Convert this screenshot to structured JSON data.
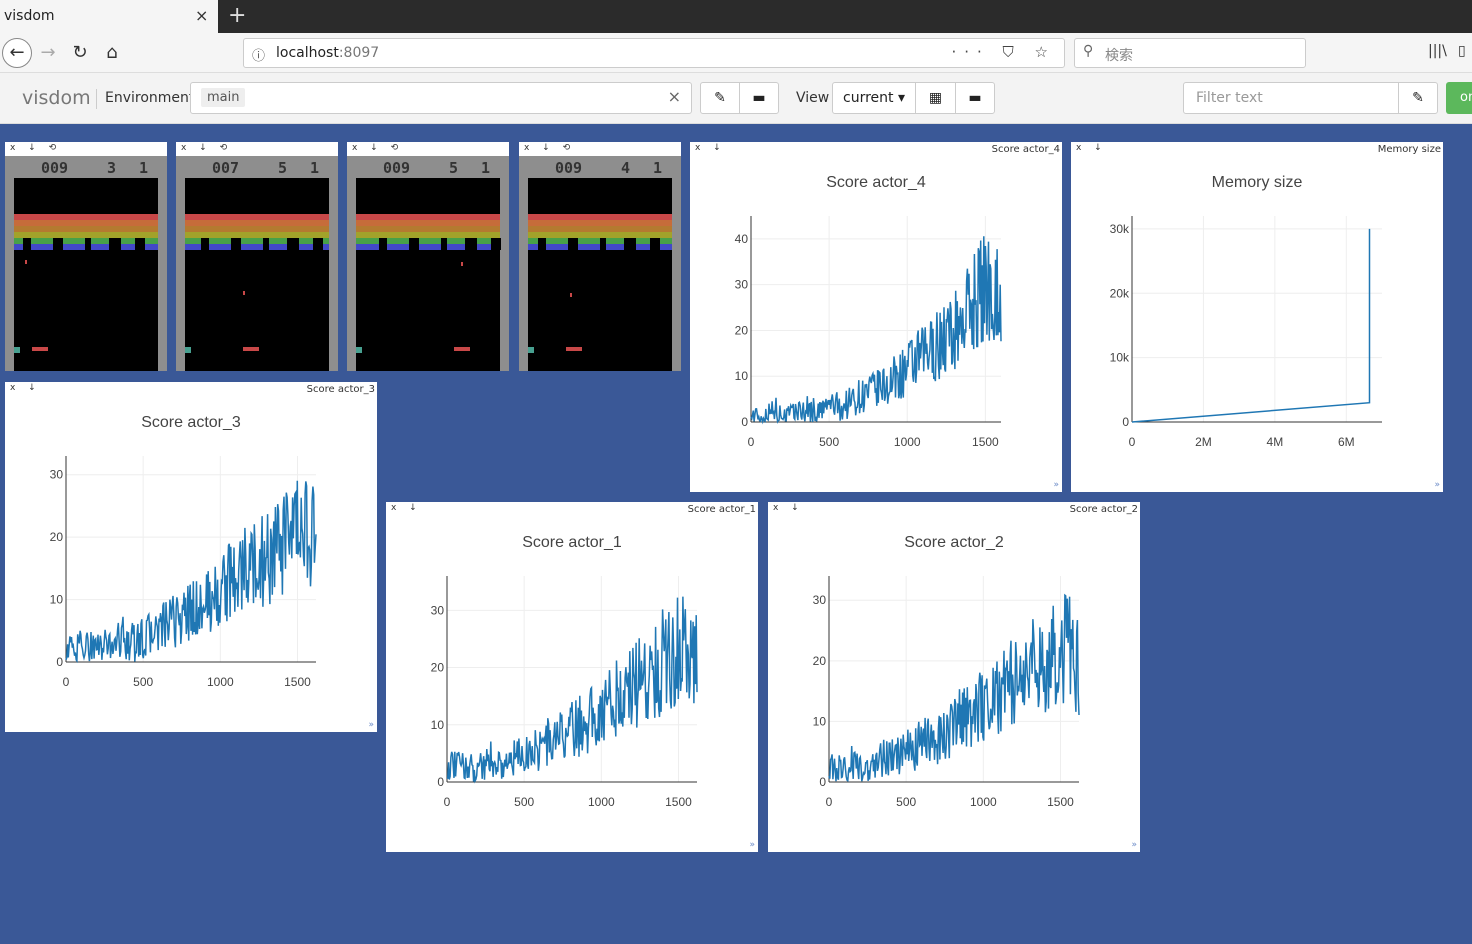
{
  "browser": {
    "tab_title": "visdom",
    "tab_close": "×",
    "new_tab": "+",
    "url_host": "localhost",
    "url_port": ":8097",
    "url_actions": "··· ⛉ ☆",
    "search_placeholder": "検索"
  },
  "toolbar": {
    "brand": "visdom",
    "environment_label": "Environment",
    "env_tag": "main",
    "env_clear": "×",
    "view_label": "View",
    "view_select": "current ▾",
    "filter_placeholder": "Filter text",
    "online_label": "online"
  },
  "panes": {
    "controls": "x ↓ ⟲",
    "controls_short": "x ↓",
    "images": [
      {
        "score": "009",
        "a": "3",
        "b": "1"
      },
      {
        "score": "007",
        "a": "5",
        "b": "1"
      },
      {
        "score": "009",
        "a": "5",
        "b": "1"
      },
      {
        "score": "009",
        "a": "4",
        "b": "1"
      }
    ],
    "score4_tab": "Score actor_4",
    "memory_tab": "Memory size",
    "score3_tab": "Score actor_3",
    "score1_tab": "Score actor_1",
    "score2_tab": "Score actor_2",
    "resize": "»"
  },
  "chart_data": [
    {
      "id": "score4",
      "type": "line",
      "title": "Score actor_4",
      "xlim": [
        0,
        1600
      ],
      "ylim": [
        0,
        45
      ],
      "xticks": [
        0,
        500,
        1000,
        1500
      ],
      "yticks": [
        0,
        10,
        20,
        30,
        40
      ],
      "ytick_labels": [
        "0",
        "10",
        "20",
        "30",
        "40"
      ],
      "series": [
        {
          "color": "#1f77b4",
          "values": [
            2,
            0,
            3,
            1,
            2,
            3,
            2,
            4,
            3,
            5,
            6,
            7,
            8,
            10,
            12,
            14,
            16,
            18,
            20,
            24,
            28,
            30,
            27
          ]
        }
      ]
    },
    {
      "id": "memory",
      "type": "line",
      "title": "Memory size",
      "xlim": [
        0,
        7000000
      ],
      "ylim": [
        0,
        32000
      ],
      "xticks": [
        0,
        2000000,
        4000000,
        6000000
      ],
      "xtick_labels": [
        "0",
        "2M",
        "4M",
        "6M"
      ],
      "yticks": [
        0,
        10000,
        20000,
        30000
      ],
      "ytick_labels": [
        "0",
        "10k",
        "20k",
        "30k"
      ],
      "series": [
        {
          "color": "#1f77b4",
          "x": [
            0,
            6650000,
            6650000
          ],
          "y": [
            0,
            3000,
            30000
          ]
        }
      ]
    },
    {
      "id": "score3",
      "type": "line",
      "title": "Score actor_3",
      "xlim": [
        0,
        1620
      ],
      "ylim": [
        0,
        33
      ],
      "xticks": [
        0,
        500,
        1000,
        1500
      ],
      "yticks": [
        0,
        10,
        20,
        30
      ],
      "ytick_labels": [
        "0",
        "10",
        "20",
        "30"
      ],
      "series": [
        {
          "color": "#1f77b4",
          "values": [
            2,
            2,
            3,
            2,
            3,
            4,
            3,
            4,
            5,
            6,
            7,
            8,
            9,
            10,
            12,
            14,
            15,
            16,
            17,
            18,
            20,
            22,
            19
          ]
        }
      ]
    },
    {
      "id": "score1",
      "type": "line",
      "title": "Score actor_1",
      "xlim": [
        0,
        1620
      ],
      "ylim": [
        0,
        36
      ],
      "xticks": [
        0,
        500,
        1000,
        1500
      ],
      "yticks": [
        0,
        10,
        20,
        30
      ],
      "ytick_labels": [
        "0",
        "10",
        "20",
        "30"
      ],
      "series": [
        {
          "color": "#1f77b4",
          "values": [
            2,
            3,
            2,
            3,
            4,
            3,
            4,
            5,
            6,
            7,
            8,
            9,
            10,
            12,
            13,
            15,
            16,
            18,
            19,
            21,
            23,
            24,
            20
          ]
        }
      ]
    },
    {
      "id": "score2",
      "type": "line",
      "title": "Score actor_2",
      "xlim": [
        0,
        1620
      ],
      "ylim": [
        0,
        34
      ],
      "xticks": [
        0,
        500,
        1000,
        1500
      ],
      "yticks": [
        0,
        10,
        20,
        30
      ],
      "ytick_labels": [
        "0",
        "10",
        "20",
        "30"
      ],
      "series": [
        {
          "color": "#1f77b4",
          "values": [
            2,
            2,
            3,
            2,
            3,
            4,
            4,
            5,
            6,
            7,
            8,
            9,
            11,
            12,
            14,
            15,
            16,
            17,
            19,
            20,
            21,
            22,
            19
          ]
        }
      ]
    }
  ]
}
